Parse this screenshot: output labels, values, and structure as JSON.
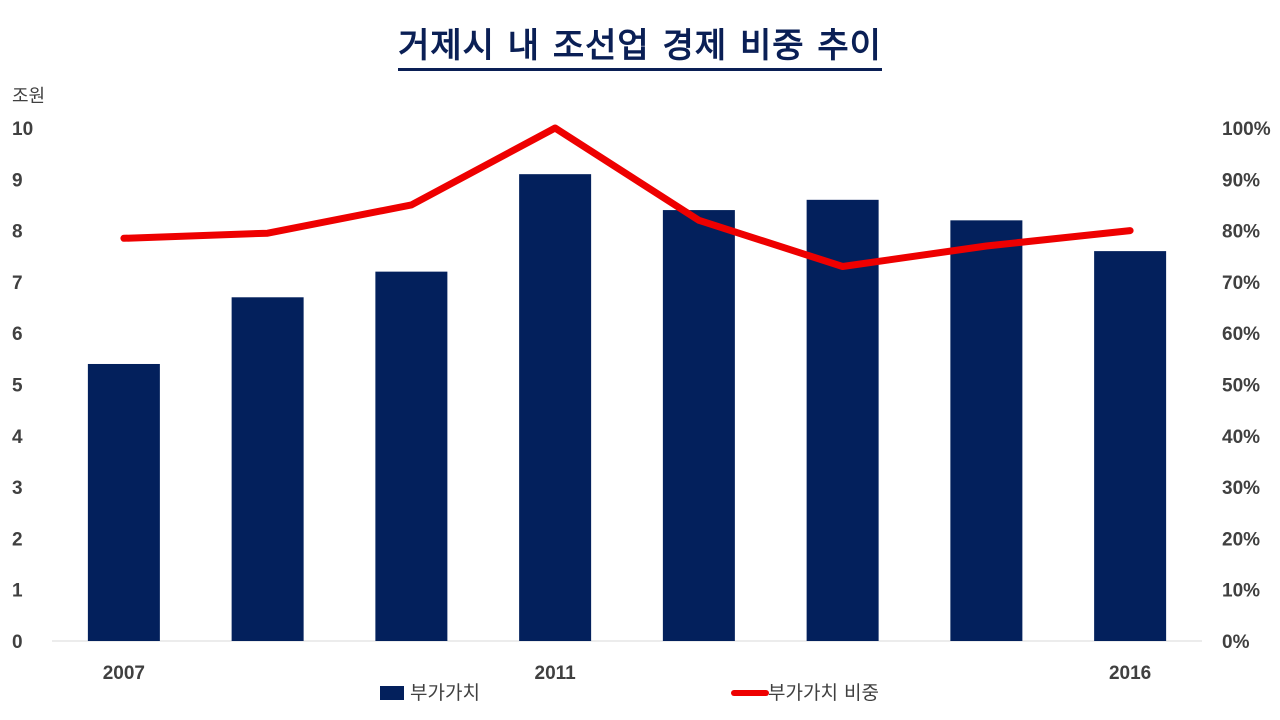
{
  "title": "거제시 내 조선업 경제 비중 추이",
  "chart_data": {
    "type": "bar",
    "categories": [
      "2007",
      "",
      "",
      "2011",
      "",
      "",
      "",
      "2016"
    ],
    "y_unit_label": "조원",
    "ylim": [
      0,
      10
    ],
    "y_ticks": [
      "0",
      "1",
      "2",
      "3",
      "4",
      "5",
      "6",
      "7",
      "8",
      "9",
      "10"
    ],
    "y2lim": [
      0,
      100
    ],
    "y2_ticks": [
      "0%",
      "10%",
      "20%",
      "30%",
      "40%",
      "50%",
      "60%",
      "70%",
      "80%",
      "90%",
      "100%"
    ],
    "grid": false,
    "legend_position": "bottom",
    "series": [
      {
        "name": "부가가치",
        "type": "bar",
        "axis": "left",
        "color": "#03205c",
        "values": [
          5.4,
          6.7,
          7.2,
          9.1,
          8.4,
          8.6,
          8.2,
          7.6
        ]
      },
      {
        "name": "부가가치 비중",
        "type": "line",
        "axis": "right",
        "color": "#ee0000",
        "values": [
          78.5,
          79.5,
          85,
          100,
          82,
          73,
          77,
          80
        ]
      }
    ]
  }
}
